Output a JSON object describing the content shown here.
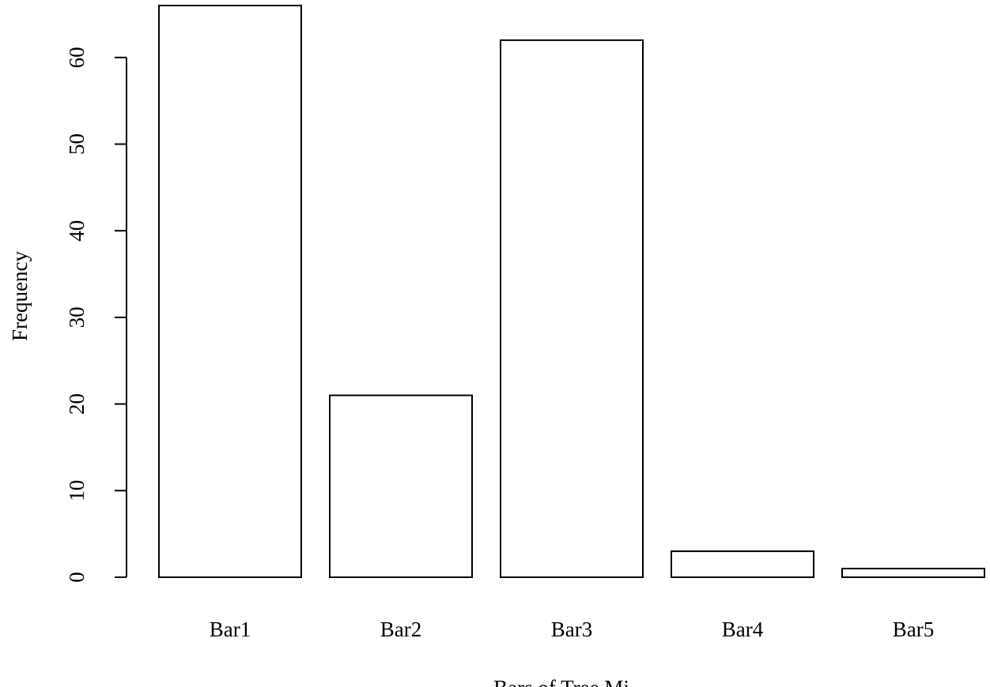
{
  "chart_data": {
    "type": "bar",
    "categories": [
      "Bar1",
      "Bar2",
      "Bar3",
      "Bar4",
      "Bar5"
    ],
    "values": [
      66,
      21,
      62,
      3,
      1
    ],
    "color": "#ffffff",
    "ylim": [
      0,
      66
    ],
    "yticks": [
      0,
      10,
      20,
      30,
      40,
      50,
      60
    ],
    "y_label": "Frequency",
    "x_label": "Bars of Tree Mi"
  }
}
